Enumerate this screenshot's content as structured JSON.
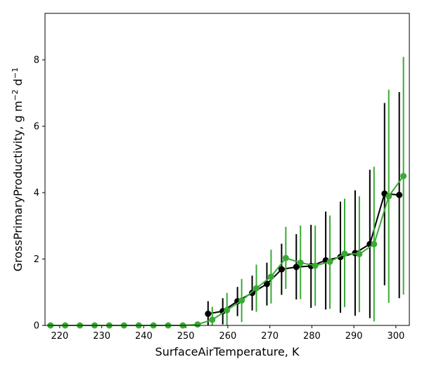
{
  "chart_data": {
    "type": "line",
    "xlabel": "SurfaceAirTemperature,  K",
    "ylabel_parts": {
      "main": "GrossPrimaryProductivity,  g m",
      "exp1": "−2",
      "mid": " d",
      "exp2": "−1"
    },
    "xlim": [
      216.5,
      303.2
    ],
    "ylim": [
      0,
      9.4
    ],
    "xticks": [
      220,
      230,
      240,
      250,
      260,
      270,
      280,
      290,
      300
    ],
    "yticks": [
      0,
      2,
      4,
      6,
      8
    ],
    "grid": false,
    "series": [
      {
        "color": "#000000",
        "x": [
          255.3,
          258.8,
          262.3,
          265.8,
          269.3,
          272.8,
          276.3,
          279.8,
          283.3,
          286.8,
          290.3,
          293.8,
          297.3,
          300.8
        ],
        "y": [
          0.35,
          0.43,
          0.73,
          0.98,
          1.25,
          1.69,
          1.76,
          1.79,
          1.96,
          2.06,
          2.18,
          2.45,
          3.97,
          3.93
        ],
        "err_low": [
          0.0,
          0.03,
          0.28,
          0.45,
          0.6,
          0.92,
          0.78,
          0.53,
          0.48,
          0.38,
          0.29,
          0.22,
          1.21,
          0.82
        ],
        "err_high": [
          0.73,
          0.82,
          1.16,
          1.5,
          1.89,
          2.46,
          2.75,
          3.03,
          3.43,
          3.73,
          4.07,
          4.69,
          6.7,
          7.03
        ]
      },
      {
        "color": "#3aaa35",
        "x": [
          217.8,
          221.3,
          224.8,
          228.3,
          231.8,
          235.3,
          238.8,
          242.3,
          245.8,
          249.3,
          252.8,
          256.3,
          259.8,
          263.3,
          266.8,
          270.3,
          273.8,
          277.3,
          280.8,
          284.3,
          287.8,
          291.3,
          294.8,
          298.3,
          301.8
        ],
        "y": [
          0,
          0,
          0,
          0,
          0,
          0,
          0,
          0,
          0,
          0,
          0.03,
          0.17,
          0.46,
          0.75,
          1.12,
          1.47,
          2.03,
          1.89,
          1.8,
          1.92,
          2.16,
          2.15,
          2.45,
          3.89,
          4.5
        ],
        "err_low": [
          0,
          0,
          0,
          0,
          0,
          0,
          0,
          0,
          0,
          0,
          0.0,
          0.0,
          0.0,
          0.1,
          0.41,
          0.66,
          1.1,
          0.79,
          0.59,
          0.5,
          0.55,
          0.4,
          0.12,
          0.68,
          0.93
        ],
        "err_high": [
          0,
          0,
          0,
          0,
          0,
          0,
          0,
          0,
          0,
          0,
          0.06,
          0.56,
          0.98,
          1.4,
          1.83,
          2.28,
          2.97,
          3.01,
          3.01,
          3.31,
          3.82,
          3.89,
          4.78,
          7.1,
          8.09
        ]
      }
    ]
  }
}
